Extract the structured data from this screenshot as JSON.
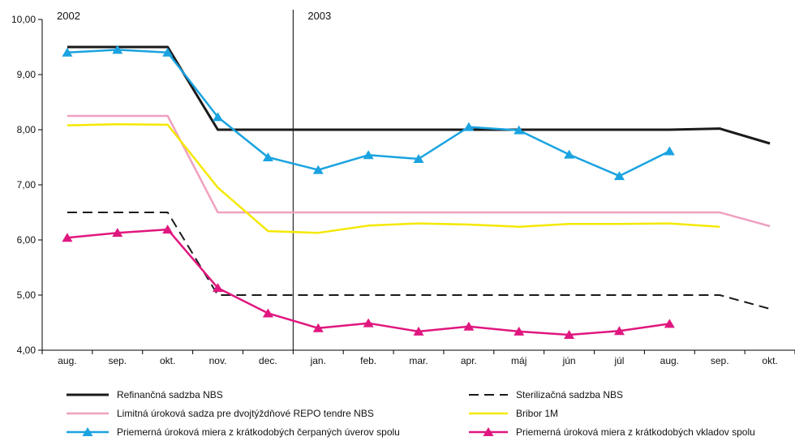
{
  "chart_data": {
    "type": "line",
    "categories": [
      "aug.",
      "sep.",
      "okt.",
      "nov.",
      "dec.",
      "jan.",
      "feb.",
      "mar.",
      "apr.",
      "máj",
      "jún",
      "júl",
      "aug.",
      "sep.",
      "okt."
    ],
    "year_labels": [
      {
        "text": "2002",
        "category_index": 0
      },
      {
        "text": "2003",
        "category_index": 5
      }
    ],
    "year_divider_before_index": 5,
    "y_ticks": [
      "4,00",
      "5,00",
      "6,00",
      "7,00",
      "8,00",
      "9,00",
      "10,00"
    ],
    "ylim": [
      4,
      10
    ],
    "grid": false,
    "legend_position": "bottom",
    "series": [
      {
        "name": "Refinančná sadzba NBS",
        "color": "#1a1a1a",
        "style": "solid",
        "width": 3,
        "marker": "none",
        "values": [
          9.5,
          9.5,
          9.5,
          8.0,
          8.0,
          8.0,
          8.0,
          8.0,
          8.0,
          8.0,
          8.0,
          8.0,
          8.0,
          8.02,
          7.75
        ]
      },
      {
        "name": "Sterilizačná sadzba NBS",
        "color": "#1a1a1a",
        "style": "dashed",
        "width": 2,
        "marker": "none",
        "values": [
          6.5,
          6.5,
          6.5,
          5.0,
          5.0,
          5.0,
          5.0,
          5.0,
          5.0,
          5.0,
          5.0,
          5.0,
          5.0,
          5.0,
          4.75
        ]
      },
      {
        "name": "Limitná úroková sadza pre dvojtýždňové REPO tendre NBS",
        "color": "#f0a0c0",
        "style": "solid",
        "width": 2.5,
        "marker": "none",
        "values": [
          8.25,
          8.25,
          8.25,
          6.5,
          6.5,
          6.5,
          6.5,
          6.5,
          6.5,
          6.5,
          6.5,
          6.5,
          6.5,
          6.5,
          6.25
        ]
      },
      {
        "name": "Bribor 1M",
        "color": "#f5e800",
        "style": "solid",
        "width": 2.5,
        "marker": "none",
        "values": [
          8.08,
          8.1,
          8.09,
          6.95,
          6.16,
          6.13,
          6.26,
          6.3,
          6.28,
          6.24,
          6.29,
          6.29,
          6.3,
          6.24,
          null
        ]
      },
      {
        "name": "Priemerná úroková miera z krátkodobých čerpaných úverov spolu",
        "color": "#1aa3e0",
        "style": "solid",
        "width": 2.5,
        "marker": "triangle",
        "values": [
          9.4,
          9.45,
          9.4,
          8.23,
          7.5,
          7.27,
          7.54,
          7.47,
          8.05,
          7.99,
          7.55,
          7.16,
          7.61,
          null,
          null
        ]
      },
      {
        "name": "Priemerná úroková miera z krátkodobých vkladov spolu",
        "color": "#e0177f",
        "style": "solid",
        "width": 2.5,
        "marker": "triangle",
        "values": [
          6.04,
          6.13,
          6.19,
          5.13,
          4.67,
          4.4,
          4.49,
          4.34,
          4.43,
          4.34,
          4.28,
          4.35,
          4.48,
          null,
          null
        ]
      }
    ]
  }
}
